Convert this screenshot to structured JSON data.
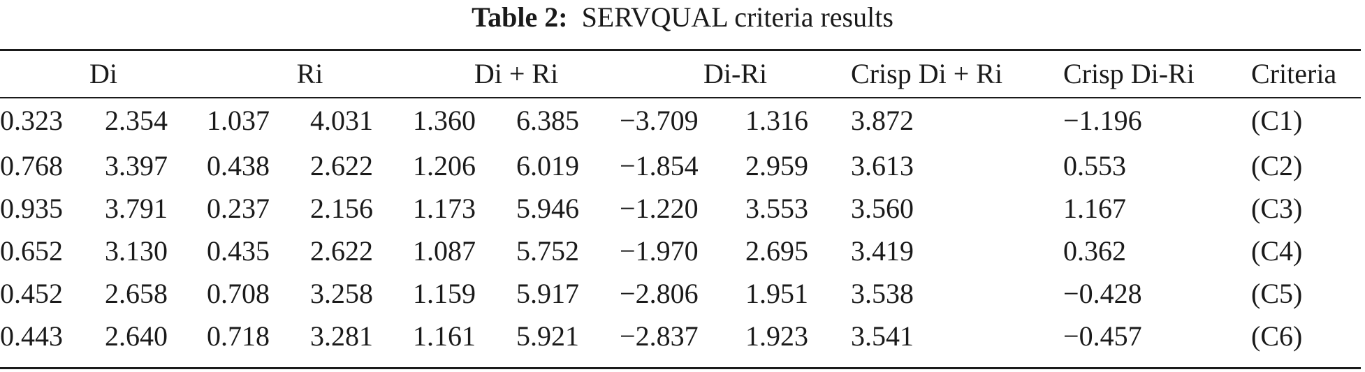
{
  "caption": {
    "label": "Table 2:",
    "title": "SERVQUAL criteria results"
  },
  "table": {
    "headers": [
      "Di",
      "Ri",
      "Di + Ri",
      "Di-Ri",
      "Crisp Di + Ri",
      "Crisp Di-Ri",
      "Criteria"
    ],
    "rows": [
      [
        "0.323",
        "2.354",
        "1.037",
        "4.031",
        "1.360",
        "6.385",
        "−3.709",
        "1.316",
        "3.872",
        "−1.196",
        "(C1)"
      ],
      [
        "0.768",
        "3.397",
        "0.438",
        "2.622",
        "1.206",
        "6.019",
        "−1.854",
        "2.959",
        "3.613",
        "0.553",
        "(C2)"
      ],
      [
        "0.935",
        "3.791",
        "0.237",
        "2.156",
        "1.173",
        "5.946",
        "−1.220",
        "3.553",
        "3.560",
        "1.167",
        "(C3)"
      ],
      [
        "0.652",
        "3.130",
        "0.435",
        "2.622",
        "1.087",
        "5.752",
        "−1.970",
        "2.695",
        "3.419",
        "0.362",
        "(C4)"
      ],
      [
        "0.452",
        "2.658",
        "0.708",
        "3.258",
        "1.159",
        "5.917",
        "−2.806",
        "1.951",
        "3.538",
        "−0.428",
        "(C5)"
      ],
      [
        "0.443",
        "2.640",
        "0.718",
        "3.281",
        "1.161",
        "5.921",
        "−2.837",
        "1.923",
        "3.541",
        "−0.457",
        "(C6)"
      ]
    ]
  }
}
